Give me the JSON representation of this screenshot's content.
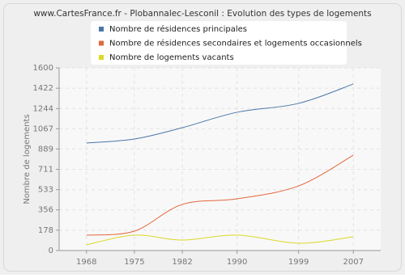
{
  "chart_data": {
    "type": "line",
    "title": "www.CartesFrance.fr - Plobannalec-Lesconil : Evolution des types de logements",
    "y_label": "Nombre de logements",
    "x": [
      1968,
      1975,
      1982,
      1990,
      1999,
      2007
    ],
    "xlim": [
      1964,
      2011
    ],
    "xticks": [
      1968,
      1975,
      1982,
      1990,
      1999,
      2007
    ],
    "ylim": [
      0,
      1600
    ],
    "yticks": [
      0,
      178,
      356,
      533,
      711,
      889,
      1067,
      1244,
      1422,
      1600
    ],
    "grid": true,
    "legend": "top",
    "series": [
      {
        "name": "Nombre de résidences principales",
        "color": "#4a76a8",
        "values": [
          942,
          977,
          1076,
          1211,
          1289,
          1459
        ]
      },
      {
        "name": "Nombre de résidences secondaires et logements occasionnels",
        "color": "#e2683c",
        "values": [
          135,
          170,
          404,
          453,
          566,
          835
        ]
      },
      {
        "name": "Nombre de logements vacants",
        "color": "#d9d92a",
        "values": [
          50,
          135,
          92,
          135,
          64,
          120
        ]
      }
    ]
  }
}
